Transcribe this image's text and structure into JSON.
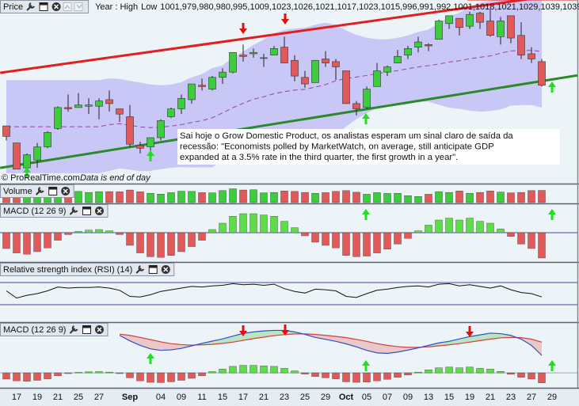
{
  "chart_data": [
    {
      "type": "candlestick",
      "title": "Price",
      "range_label": "Year : High",
      "high": [
        1012,
        999,
        991,
        999,
        1008,
        1027,
        1036,
        1037,
        1033,
        1033,
        1039,
        1025,
        1028,
        1000,
        1003,
        1017,
        1026,
        1036,
        1044,
        1048,
        1050,
        1056,
        1068,
        1074,
        1071,
        1067,
        1073,
        1080,
        1066,
        1054,
        1062,
        1069,
        1063,
        1054,
        1031,
        1042,
        1060,
        1058,
        1070,
        1073,
        1080,
        1075,
        1093,
        1096,
        1094,
        1099,
        1099,
        1101,
        1095,
        1096,
        1091,
        1072,
        1063
      ],
      "low_label": "Low",
      "low": [
        1001,
        979,
        980,
        980,
        995,
        1009,
        1023,
        1026,
        1021,
        1017,
        1023,
        1015,
        996,
        991,
        992,
        1001,
        1018,
        1021,
        1029,
        1039,
        1039,
        1044,
        1052,
        1061,
        1064,
        1057,
        1066,
        1060,
        1046,
        1041,
        1045,
        1057,
        1047,
        1029,
        1020,
        1025,
        1042,
        1050,
        1060,
        1063,
        1068,
        1069,
        1078,
        1086,
        1081,
        1086,
        1086,
        1080,
        1074,
        1075,
        1063,
        1060,
        1042
      ],
      "annotation": [
        "Sai hoje o Grow Domestic Product, os analistas esperam um sinal claro de saída da",
        "recessão: \"Economists polled by MarketWatch, on average, still anticipate GDP",
        "expanded at a 3.5% rate in the third quarter, the first growth in a year\"."
      ],
      "footer": [
        "© ProRealTime.com",
        "Data is end of day"
      ],
      "open": [
        1012,
        999,
        980,
        986,
        996,
        1010,
        1026,
        1026,
        1027,
        1027,
        1032,
        1025,
        1019,
        997,
        996,
        1003,
        1019,
        1025,
        1032,
        1043,
        1040,
        1049,
        1053,
        1066,
        1067,
        1064,
        1066,
        1072,
        1062,
        1049,
        1045,
        1063,
        1061,
        1054,
        1029,
        1026,
        1042,
        1053,
        1060,
        1066,
        1072,
        1074,
        1078,
        1090,
        1094,
        1088,
        1098,
        1092,
        1080,
        1096,
        1081,
        1067,
        1061
      ],
      "close": [
        1004,
        979,
        990,
        996,
        1007,
        1026,
        1025,
        1028,
        1028,
        1031,
        1029,
        1021,
        998,
        995,
        1003,
        1016,
        1025,
        1033,
        1044,
        1042,
        1049,
        1053,
        1068,
        1065,
        1068,
        1064,
        1071,
        1060,
        1050,
        1044,
        1062,
        1060,
        1057,
        1029,
        1025,
        1040,
        1054,
        1057,
        1065,
        1071,
        1076,
        1073,
        1092,
        1096,
        1087,
        1097,
        1091,
        1081,
        1092,
        1079,
        1066,
        1063,
        1043
      ],
      "ylim": [
        968,
        1108
      ],
      "up_color": "#3dcc3d",
      "down_color": "#e05a5a",
      "band_color": "#c9c7f6",
      "ma_color": "#9a3fb0",
      "trendlines": [
        {
          "color": "#e02020",
          "points": [
            [
              -0.6,
              1052.5
            ],
            [
              55.6,
              1114
            ]
          ]
        },
        {
          "color": "#2a8a2a",
          "points": [
            [
              -0.6,
              980
            ],
            [
              55.6,
              1050.7
            ]
          ]
        }
      ],
      "high_line_color": "#e02020"
    },
    {
      "type": "bar",
      "title": "Volume",
      "values": [
        4.4,
        5.0,
        4.6,
        4.8,
        5.2,
        6.3,
        5.6,
        5.5,
        5.0,
        5.4,
        5.4,
        5.3,
        6.2,
        5.3,
        4.6,
        4.2,
        4.9,
        5.6,
        5.5,
        4.9,
        4.8,
        5.9,
        6.8,
        6.2,
        6.3,
        4.8,
        5.0,
        5.7,
        5.5,
        5.0,
        4.6,
        4.9,
        5.5,
        5.9,
        5.1,
        4.1,
        4.9,
        4.5,
        4.6,
        3.4,
        3.0,
        4.1,
        5.4,
        5.0,
        5.7,
        4.6,
        5.0,
        5.7,
        5.2,
        4.8,
        5.0,
        5.9,
        6.0
      ],
      "ylim": [
        0,
        7
      ]
    },
    {
      "type": "bar",
      "title": "MACD (12 26 9)",
      "values": [
        -2.5,
        -3.2,
        -3.4,
        -3,
        -2.4,
        -1.2,
        -0.3,
        0.2,
        0.4,
        0.5,
        0.3,
        -0.3,
        -2,
        -3.2,
        -3.8,
        -3.9,
        -3.6,
        -3,
        -2.2,
        -1.2,
        0.5,
        1.5,
        2.6,
        3,
        3,
        2.8,
        2.6,
        1.8,
        0.8,
        -0.5,
        -1.5,
        -2,
        -2.4,
        -3.6,
        -3.8,
        -3.7,
        -3.2,
        -2.6,
        -1.8,
        -0.9,
        0.3,
        1.2,
        2,
        2.3,
        2,
        2.3,
        1.8,
        1.5,
        0.6,
        -0.6,
        -1.8,
        -2.5,
        -4
      ],
      "ylim": [
        -4.5,
        4
      ],
      "up_color": "#5fdc4a",
      "down_color": "#e05a5a"
    },
    {
      "type": "line",
      "title": "Relative strength index (RSI) (14)",
      "values": [
        55,
        42,
        47,
        50,
        55,
        62,
        60,
        61,
        61,
        62,
        60,
        56,
        45,
        44,
        48,
        54,
        57,
        60,
        63,
        62,
        64,
        65,
        68,
        66,
        67,
        65,
        67,
        59,
        54,
        51,
        58,
        57,
        55,
        45,
        43,
        50,
        56,
        58,
        61,
        63,
        64,
        62,
        67,
        68,
        64,
        66,
        63,
        60,
        64,
        57,
        52,
        50,
        44
      ],
      "ylim": [
        0,
        100
      ],
      "levels": [
        70,
        30
      ],
      "color": "#111111",
      "level_color": "#3a4aa0"
    },
    {
      "type": "macd",
      "title": "MACD (12 26 9)",
      "macd": {
        "color": "#3050c8",
        "values": [
          null,
          null,
          null,
          null,
          null,
          null,
          null,
          null,
          null,
          null,
          null,
          15.0,
          12.8,
          11.0,
          9.6,
          9.0,
          9.2,
          9.8,
          10.8,
          11.8,
          12.7,
          13.6,
          14.7,
          15.8,
          16.4,
          16.8,
          17.0,
          17.0,
          16.4,
          15.4,
          14.2,
          13.4,
          12.6,
          11.6,
          10.4,
          9.0,
          8.0,
          7.8,
          8.3,
          9.1,
          10.0,
          11.0,
          12.0,
          12.6,
          13.6,
          14.5,
          15.2,
          15.9,
          15.7,
          15.0,
          13.5,
          11.0,
          7.0
        ]
      },
      "signal": {
        "color": "#d04040",
        "values": [
          null,
          null,
          null,
          null,
          null,
          null,
          null,
          null,
          null,
          null,
          null,
          15.5,
          15.0,
          14.2,
          13.3,
          12.4,
          11.7,
          11.3,
          11.1,
          11.2,
          11.4,
          11.8,
          12.3,
          13.0,
          13.7,
          14.3,
          14.9,
          15.3,
          15.6,
          15.6,
          15.4,
          15.0,
          14.6,
          14.1,
          13.4,
          12.6,
          11.7,
          11.0,
          10.5,
          10.2,
          10.2,
          10.4,
          10.8,
          11.2,
          11.7,
          12.3,
          12.9,
          13.5,
          14.0,
          14.2,
          14.1,
          13.5,
          12.3
        ]
      },
      "histogram": [
        -2.5,
        -3.2,
        -3.4,
        -3,
        -2.4,
        -1.2,
        -0.3,
        0.2,
        0.4,
        0.5,
        0.3,
        -0.3,
        -2,
        -3.2,
        -3.8,
        -3.9,
        -3.6,
        -3,
        -2.2,
        -1.2,
        0.5,
        1.5,
        2.6,
        3,
        3,
        2.8,
        2.6,
        1.8,
        0.8,
        -0.5,
        -1.5,
        -2,
        -2.4,
        -3.6,
        -3.8,
        -3.7,
        -3.2,
        -2.6,
        -1.8,
        -0.9,
        0.3,
        1.2,
        2,
        2.3,
        2,
        2.3,
        1.8,
        1.5,
        0.6,
        -0.6,
        -1.8,
        -2.5,
        -4
      ],
      "ylim": [
        -6,
        20
      ],
      "up_color": "#5fdc4a",
      "down_color": "#e05a5a",
      "xticks": [
        {
          "value": 1,
          "label": "17"
        },
        {
          "value": 3,
          "label": "19"
        },
        {
          "value": 5,
          "label": "21"
        },
        {
          "value": 7,
          "label": "25"
        },
        {
          "value": 9,
          "label": "27"
        },
        {
          "value": 12,
          "label": "Sep"
        },
        {
          "value": 15,
          "label": "04"
        },
        {
          "value": 17,
          "label": "09"
        },
        {
          "value": 19,
          "label": "11"
        },
        {
          "value": 21,
          "label": "15"
        },
        {
          "value": 23,
          "label": "17"
        },
        {
          "value": 25,
          "label": "21"
        },
        {
          "value": 27,
          "label": "23"
        },
        {
          "value": 29,
          "label": "25"
        },
        {
          "value": 31,
          "label": "29"
        },
        {
          "value": 33,
          "label": "Oct"
        },
        {
          "value": 35,
          "label": "05"
        },
        {
          "value": 37,
          "label": "07"
        },
        {
          "value": 39,
          "label": "09"
        },
        {
          "value": 41,
          "label": "13"
        },
        {
          "value": 43,
          "label": "15"
        },
        {
          "value": 45,
          "label": "19"
        },
        {
          "value": 47,
          "label": "21"
        },
        {
          "value": 49,
          "label": "23"
        },
        {
          "value": 51,
          "label": "27"
        },
        {
          "value": 53,
          "label": "29"
        }
      ]
    }
  ]
}
